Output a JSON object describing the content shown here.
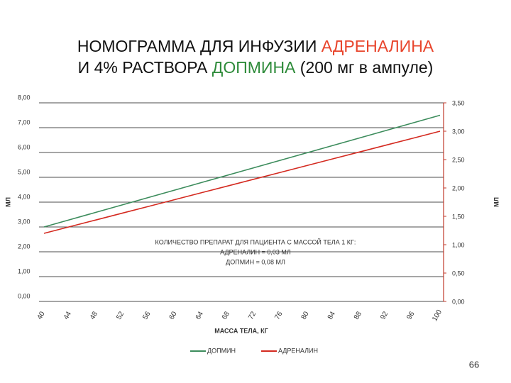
{
  "slide": {
    "title_line1": [
      "НОМОГРАММА ДЛЯ ИНФУЗИИ ",
      "АДРЕНАЛИНА"
    ],
    "title_line2": [
      "И 4% РАСТВОРА ",
      "ДОПМИНА",
      " (200 мг в ампуле)"
    ],
    "page_number": "66"
  },
  "chart_data": {
    "type": "line",
    "categories": [
      "40",
      "44",
      "48",
      "52",
      "56",
      "60",
      "64",
      "68",
      "72",
      "76",
      "80",
      "84",
      "88",
      "92",
      "96",
      "100"
    ],
    "x_label": "МАССА ТЕЛА, КГ",
    "y_label": "МЛ",
    "y2_label": "МЛ",
    "annotation": [
      "КОЛИЧЕСТВО ПРЕПАРАТ ДЛЯ ПАЦИЕНТА С МАССОЙ ТЕЛА 1 КГ:",
      "АДРЕНАЛИН = 0,03 МЛ",
      "ДОПМИН = 0,08 МЛ"
    ],
    "ylim": [
      0,
      8
    ],
    "yticks": [
      {
        "value": 0,
        "label": "0,00"
      },
      {
        "value": 1,
        "label": "1,00"
      },
      {
        "value": 2,
        "label": "2,00"
      },
      {
        "value": 3,
        "label": "3,00"
      },
      {
        "value": 4,
        "label": "4,00"
      },
      {
        "value": 5,
        "label": "5,00"
      },
      {
        "value": 6,
        "label": "6,00"
      },
      {
        "value": 7,
        "label": "7,00"
      },
      {
        "value": 8,
        "label": "8,00"
      }
    ],
    "y2lim": [
      0,
      3.5
    ],
    "y2ticks": [
      {
        "value": 0,
        "label": "0,00"
      },
      {
        "value": 0.5,
        "label": "0,50"
      },
      {
        "value": 1,
        "label": "1,00"
      },
      {
        "value": 1.5,
        "label": "1,50"
      },
      {
        "value": 2,
        "label": "2,00"
      },
      {
        "value": 2.5,
        "label": "2,50"
      },
      {
        "value": 3,
        "label": "3,00"
      },
      {
        "value": 3.5,
        "label": "3,50"
      }
    ],
    "grid": true,
    "series": [
      {
        "name": "ДОПМИН",
        "color": "#3c8c5c",
        "values": [
          3.0,
          3.3,
          3.6,
          3.9,
          4.2,
          4.5,
          4.8,
          5.1,
          5.4,
          5.7,
          6.0,
          6.3,
          6.6,
          6.9,
          7.2,
          7.5
        ]
      },
      {
        "name": "АДРЕНАЛИН",
        "color": "#d42a20",
        "axis": "y2",
        "values": [
          1.2,
          1.32,
          1.44,
          1.56,
          1.68,
          1.8,
          1.92,
          2.04,
          2.16,
          2.28,
          2.4,
          2.52,
          2.64,
          2.76,
          2.88,
          3.0
        ]
      }
    ]
  }
}
